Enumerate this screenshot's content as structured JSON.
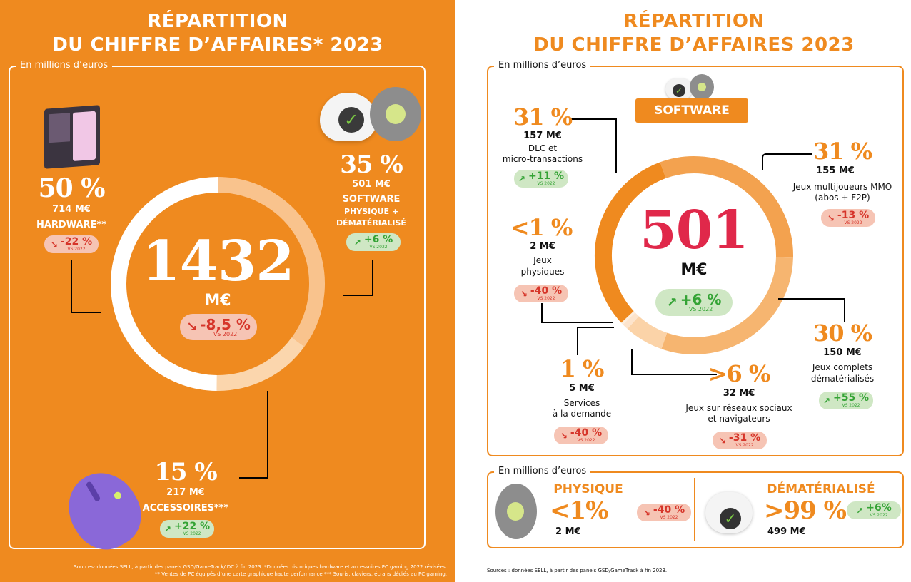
{
  "left": {
    "title_line1": "RÉPARTITION",
    "title_line2": "DU CHIFFRE D’AFFAIRES* 2023",
    "unit_label": "En millions d’euros",
    "total": "1432",
    "total_unit": "M€",
    "total_change": {
      "value": "-8,5 %",
      "vs": "VS 2022"
    },
    "hardware": {
      "pct": "50 %",
      "amount": "714 M€",
      "label": "HARDWARE**",
      "change": "-22 %",
      "vs": "VS 2022"
    },
    "software": {
      "pct": "35 %",
      "amount": "501 M€",
      "label": "SOFTWARE",
      "sub1": "PHYSIQUE +",
      "sub2": "DÉMATÉRIALISÉ",
      "change": "+6 %",
      "vs": "VS 2022"
    },
    "accessories": {
      "pct": "15 %",
      "amount": "217 M€",
      "label": "ACCESSOIRES***",
      "change": "+22 %",
      "vs": "VS 2022"
    },
    "source1": "Sources: données SELL, à partir des panels GSD/GameTrack/IDC à fin 2023. *Données historiques hardware et accessoires PC gaming 2022 révisées.",
    "source2": "** Ventes de PC équipés d’une carte graphique haute performance *** Souris, claviers, écrans dédiés au PC gaming."
  },
  "right": {
    "title_line1": "RÉPARTITION",
    "title_line2": "DU CHIFFRE D’AFFAIRES 2023",
    "unit_label": "En millions d’euros",
    "software_label": "SOFTWARE",
    "total": "501",
    "total_unit": "M€",
    "total_change": {
      "value": "+6 %",
      "vs": "VS 2022"
    },
    "items": [
      {
        "pct": "31 %",
        "amount": "157 M€",
        "label1": "DLC et",
        "label2": "micro-transactions",
        "change": "+11 %",
        "vs": "VS 2022"
      },
      {
        "pct": "31 %",
        "amount": "155 M€",
        "label1": "Jeux multijoueurs MMO",
        "label2": "(abos + F2P)",
        "change": "-13 %",
        "vs": "VS 2022"
      },
      {
        "pct": "<1 %",
        "amount": "2 M€",
        "label1": "Jeux",
        "label2": "physiques",
        "change": "-40 %",
        "vs": "VS 2022"
      },
      {
        "pct": "30 %",
        "amount": "150 M€",
        "label1": "Jeux complets",
        "label2": "dématérialisés",
        "change": "+55 %",
        "vs": "VS 2022"
      },
      {
        "pct": "1 %",
        "amount": "5 M€",
        "label1": "Services",
        "label2": "à la demande",
        "change": "-40 %",
        "vs": "VS 2022"
      },
      {
        "pct": ">6 %",
        "amount": "32 M€",
        "label1": "Jeux sur réseaux sociaux",
        "label2": "et navigateurs",
        "change": "-31 %",
        "vs": "VS 2022"
      }
    ],
    "unit_label2": "En millions d’euros",
    "physique": {
      "label": "PHYSIQUE",
      "pct": "<1%",
      "amount": "2 M€",
      "change": "-40 %",
      "vs": "VS 2022"
    },
    "demat": {
      "label": "DÉMATÉRIALISÉ",
      "pct": ">99 %",
      "amount": "499 M€",
      "change": "+6%",
      "vs": "VS 2022"
    },
    "source": "Sources : données SELL, à partir des panels GSD/GameTrack à fin 2023."
  },
  "chart_data": [
    {
      "type": "pie",
      "title": "Répartition du chiffre d’affaires* 2023 (PC gaming)",
      "unit": "M€",
      "total": 1432,
      "categories": [
        "Software",
        "Accessoires",
        "Hardware"
      ],
      "values": [
        501,
        217,
        714
      ],
      "percent": [
        35,
        15,
        50
      ],
      "colors": [
        "#f9c38d",
        "#fbd6ad",
        "#ffffff"
      ]
    },
    {
      "type": "pie",
      "title": "Répartition du chiffre d’affaires 2023 (Software)",
      "unit": "M€",
      "total": 501,
      "categories": [
        "Jeux multijoueurs MMO",
        "Jeux complets dématérialisés",
        "Jeux sur réseaux sociaux et navigateurs",
        "Services à la demande",
        "Jeux physiques",
        "DLC et micro-transactions"
      ],
      "values": [
        155,
        150,
        32,
        5,
        2,
        157
      ],
      "percent": [
        31,
        30,
        6,
        1,
        0.4,
        31
      ],
      "colors": [
        "#f3a24f",
        "#f6b570",
        "#fbd3a8",
        "#fde4cc",
        "#fdeede",
        "#ef8a1f"
      ]
    }
  ]
}
